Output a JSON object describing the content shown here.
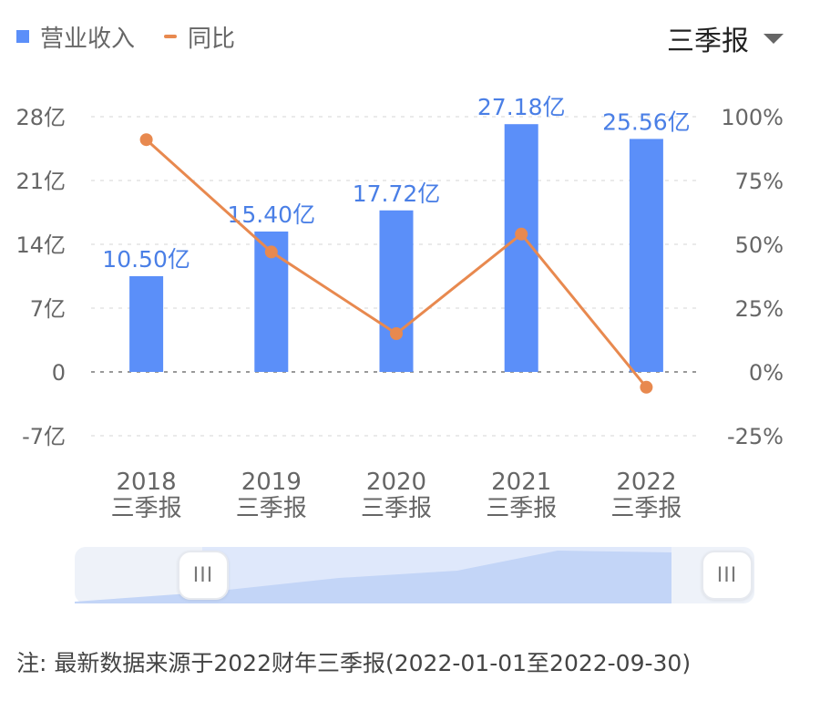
{
  "legend": {
    "bar_label": "营业收入",
    "line_label": "同比"
  },
  "period_selector": {
    "value": "三季报"
  },
  "slider": {
    "handle_glyph": "III"
  },
  "footnote": "注: 最新数据来源于2022财年三季报(2022-01-01至2022-09-30)",
  "colors": {
    "bar": "#5b8ff9",
    "line": "#e8894f",
    "label": "#4a7fe6"
  },
  "chart_data": {
    "type": "bar",
    "categories": [
      "2018",
      "2019",
      "2020",
      "2021",
      "2022"
    ],
    "category_sublabel": "三季报",
    "series": [
      {
        "name": "营业收入",
        "type": "bar",
        "axis": "left",
        "values": [
          10.5,
          15.4,
          17.72,
          27.18,
          25.56
        ],
        "labels": [
          "10.50亿",
          "15.40亿",
          "17.72亿",
          "27.18亿",
          "25.56亿"
        ]
      },
      {
        "name": "同比",
        "type": "line",
        "axis": "right",
        "values": [
          91,
          47,
          15,
          54,
          -6
        ]
      }
    ],
    "y_left": {
      "ylim": [
        -7,
        28
      ],
      "ticks": [
        28,
        21,
        14,
        7,
        0,
        -7
      ],
      "tick_labels": [
        "28亿",
        "21亿",
        "14亿",
        "7亿",
        "0",
        "-7亿"
      ]
    },
    "y_right": {
      "ylim": [
        -25,
        100
      ],
      "ticks": [
        100,
        75,
        50,
        25,
        0,
        -25
      ],
      "tick_labels": [
        "100%",
        "75%",
        "50%",
        "25%",
        "0%",
        "-25%"
      ]
    },
    "grid": true
  }
}
